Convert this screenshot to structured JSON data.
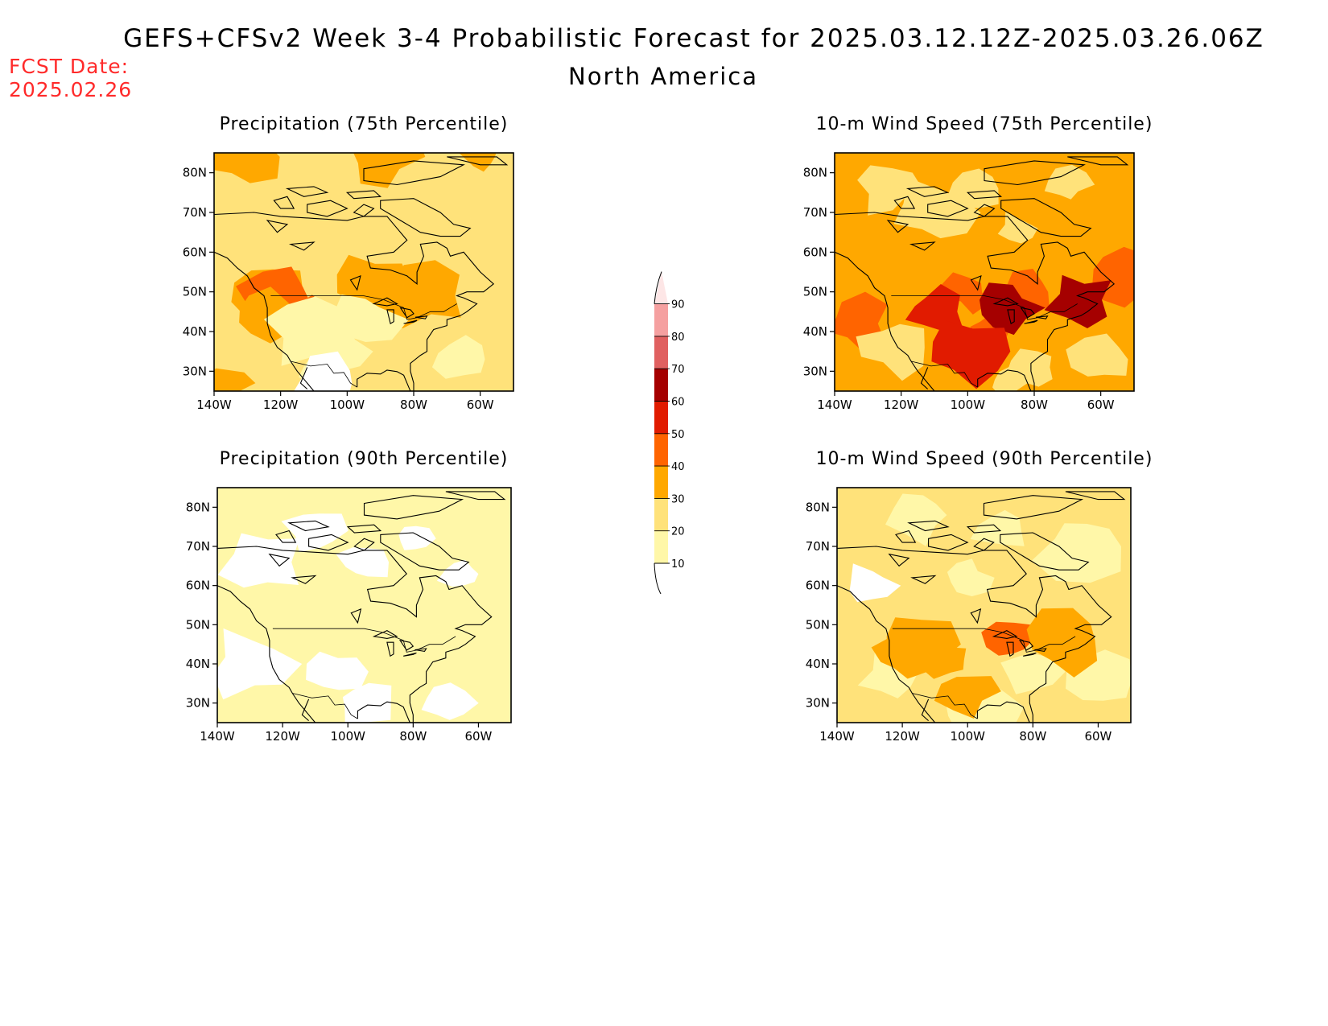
{
  "header": {
    "title": "GEFS+CFSv2 Week 3-4 Probabilistic Forecast for 2025.03.12.12Z-2025.03.26.06Z",
    "subtitle": "North America",
    "fcst_label": "FCST Date:",
    "fcst_value": "2025.02.26"
  },
  "panels": [
    {
      "title": "Precipitation (75th Percentile)",
      "base_category": 1,
      "patches": [
        {
          "lon": -131,
          "lat": 84,
          "cat": 2
        },
        {
          "lon": -90,
          "lat": 84,
          "cat": 2
        },
        {
          "lon": -60,
          "lat": 84,
          "cat": 2
        },
        {
          "lon": -124,
          "lat": 50,
          "cat": 2
        },
        {
          "lon": -119,
          "lat": 48,
          "cat": 3
        },
        {
          "lon": -112,
          "lat": 44,
          "cat": 3
        },
        {
          "lon": -125,
          "lat": 44,
          "cat": 2
        },
        {
          "lon": -93,
          "lat": 52,
          "cat": 2
        },
        {
          "lon": -76,
          "lat": 49,
          "cat": 2
        },
        {
          "lon": -136,
          "lat": 27,
          "cat": 2
        },
        {
          "lon": -112,
          "lat": 40,
          "cat": 0
        },
        {
          "lon": -96,
          "lat": 43,
          "cat": 0
        },
        {
          "lon": -103,
          "lat": 35,
          "cat": 0
        },
        {
          "lon": -108,
          "lat": 30,
          "cat": 0
        },
        {
          "lon": -66,
          "lat": 33,
          "cat": 0
        },
        {
          "lon": -105,
          "lat": 27,
          "cat": -1
        }
      ]
    },
    {
      "title": "10-m Wind Speed (75th Percentile)",
      "base_category": 2,
      "patches": [
        {
          "lon": -124,
          "lat": 76,
          "cat": 1
        },
        {
          "lon": -98,
          "lat": 76,
          "cat": 1
        },
        {
          "lon": -70,
          "lat": 77,
          "cat": 1
        },
        {
          "lon": -110,
          "lat": 70,
          "cat": 1
        },
        {
          "lon": -85,
          "lat": 66,
          "cat": 1
        },
        {
          "lon": -133,
          "lat": 42,
          "cat": 3
        },
        {
          "lon": -55,
          "lat": 54,
          "cat": 3
        },
        {
          "lon": -100,
          "lat": 50,
          "cat": 3
        },
        {
          "lon": -94,
          "lat": 40,
          "cat": 3
        },
        {
          "lon": -82,
          "lat": 50,
          "cat": 3
        },
        {
          "lon": -110,
          "lat": 45,
          "cat": 4
        },
        {
          "lon": -88,
          "lat": 46,
          "cat": 5
        },
        {
          "lon": -66,
          "lat": 48,
          "cat": 5
        },
        {
          "lon": -100,
          "lat": 35,
          "cat": 4
        },
        {
          "lon": -80,
          "lat": 31,
          "cat": 1
        },
        {
          "lon": -60,
          "lat": 33,
          "cat": 1
        },
        {
          "lon": -122,
          "lat": 36,
          "cat": 1
        },
        {
          "lon": -88,
          "lat": 27,
          "cat": 1
        }
      ]
    },
    {
      "title": "Precipitation (90th Percentile)",
      "base_category": 0,
      "patches": [
        {
          "lon": -110,
          "lat": 74,
          "cat": -1
        },
        {
          "lon": -80,
          "lat": 72,
          "cat": -1
        },
        {
          "lon": -95,
          "lat": 66,
          "cat": -1
        },
        {
          "lon": -126,
          "lat": 66,
          "cat": -1
        },
        {
          "lon": -65,
          "lat": 63,
          "cat": -1
        },
        {
          "lon": -130,
          "lat": 40,
          "cat": -1
        },
        {
          "lon": -104,
          "lat": 38,
          "cat": -1
        },
        {
          "lon": -95,
          "lat": 30,
          "cat": -1
        },
        {
          "lon": -70,
          "lat": 30,
          "cat": -1
        },
        {
          "lon": -82,
          "lat": 46,
          "cat": 0
        },
        {
          "lon": -118,
          "lat": 50,
          "cat": 0
        }
      ]
    },
    {
      "title": "10-m Wind Speed (90th Percentile)",
      "base_category": 1,
      "patches": [
        {
          "lon": -130,
          "lat": 60,
          "cat": -1
        },
        {
          "lon": -115,
          "lat": 78,
          "cat": 0
        },
        {
          "lon": -90,
          "lat": 74,
          "cat": 0
        },
        {
          "lon": -65,
          "lat": 70,
          "cat": 0
        },
        {
          "lon": -100,
          "lat": 62,
          "cat": 0
        },
        {
          "lon": -80,
          "lat": 38,
          "cat": 0
        },
        {
          "lon": -60,
          "lat": 36,
          "cat": 0
        },
        {
          "lon": -96,
          "lat": 29,
          "cat": 0
        },
        {
          "lon": -123,
          "lat": 37,
          "cat": 0
        },
        {
          "lon": -87,
          "lat": 46,
          "cat": 3
        },
        {
          "lon": -70,
          "lat": 46,
          "cat": 2
        },
        {
          "lon": -116,
          "lat": 45,
          "cat": 2
        },
        {
          "lon": -106,
          "lat": 41,
          "cat": 2
        },
        {
          "lon": -120,
          "lat": 42,
          "cat": 2
        },
        {
          "lon": -100,
          "lat": 33,
          "cat": 2
        }
      ]
    }
  ],
  "axes": {
    "lat_ticks": [
      "30N",
      "40N",
      "50N",
      "60N",
      "70N",
      "80N"
    ],
    "lon_ticks": [
      "140W",
      "120W",
      "100W",
      "80W",
      "60W"
    ],
    "lat_range": [
      25,
      85
    ],
    "lon_range": [
      -140,
      -50
    ]
  },
  "colorbar": {
    "labels": [
      "10",
      "20",
      "30",
      "40",
      "50",
      "60",
      "70",
      "80",
      "90"
    ],
    "colors": [
      "#ffffff",
      "#fff7a8",
      "#ffe27a",
      "#ffa800",
      "#ff6400",
      "#e11b00",
      "#a50000",
      "#e06060",
      "#f5a0a0",
      "#fde6e6"
    ]
  }
}
